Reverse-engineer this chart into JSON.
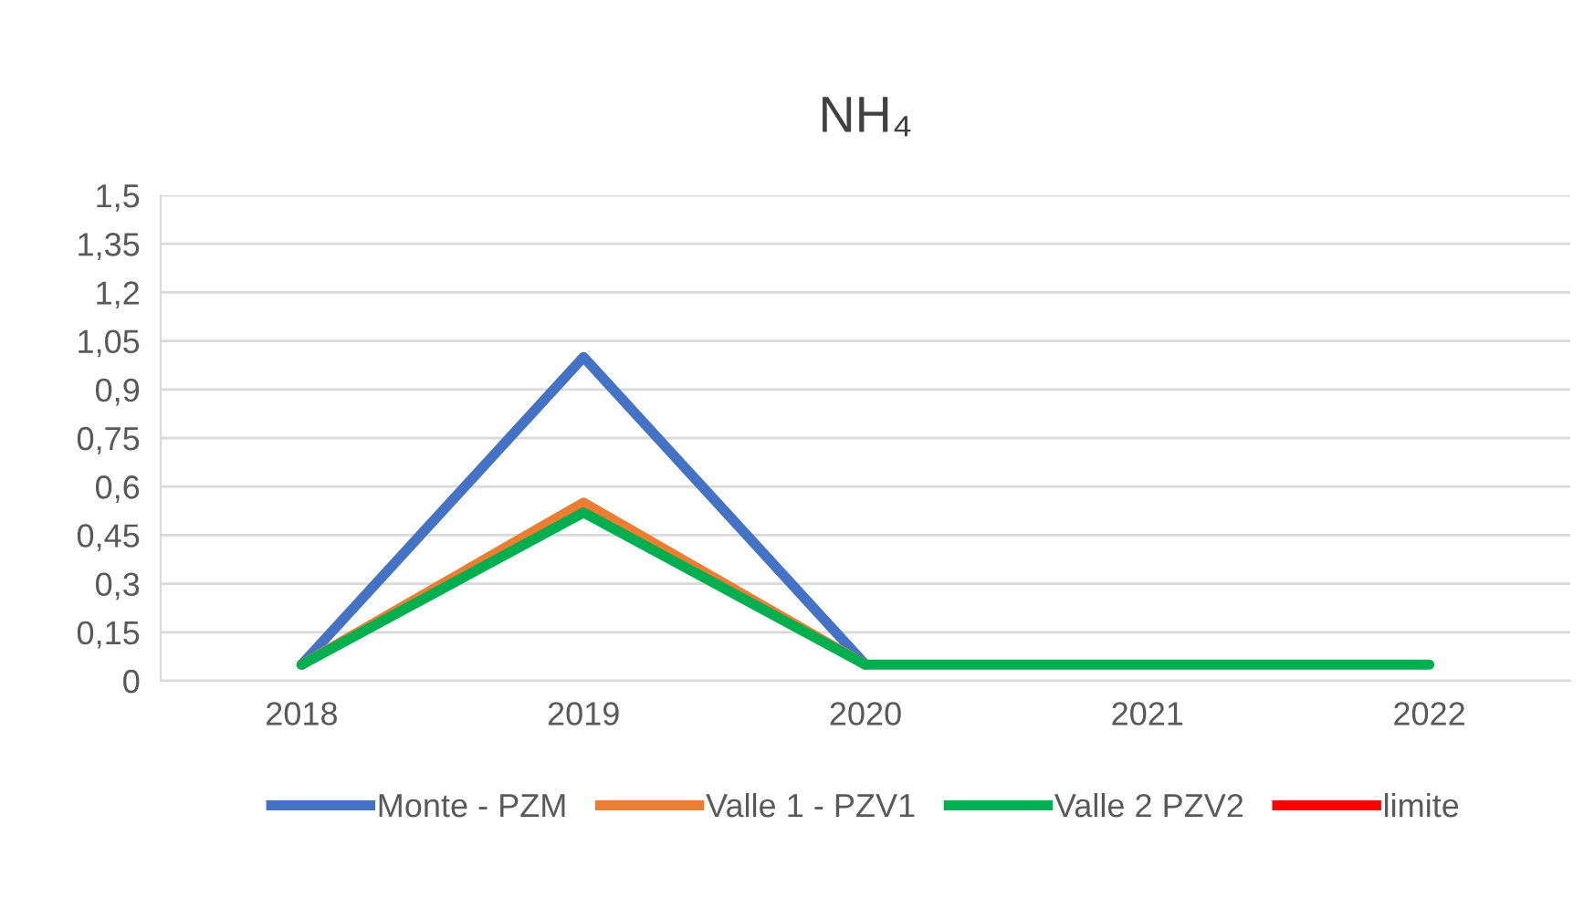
{
  "chart_data": {
    "type": "line",
    "title": "NH₄",
    "categories": [
      "2018",
      "2019",
      "2020",
      "2021",
      "2022"
    ],
    "series": [
      {
        "name": "Monte - PZM",
        "color": "#4472c4",
        "values": [
          0.05,
          1.0,
          0.05,
          null,
          null
        ]
      },
      {
        "name": "Valle 1 - PZV1",
        "color": "#ed7d31",
        "values": [
          0.05,
          0.55,
          0.05,
          null,
          null
        ]
      },
      {
        "name": "Valle 2 PZV2",
        "color": "#00b050",
        "values": [
          0.05,
          0.52,
          0.05,
          0.05,
          0.05
        ]
      },
      {
        "name": "limite",
        "color": "#ff0000",
        "values": [
          null,
          null,
          null,
          null,
          null
        ]
      }
    ],
    "ylim": [
      0,
      1.5
    ],
    "yticks": [
      0,
      {
        "value": 0.15,
        "label": "0,15"
      },
      {
        "value": 0.3,
        "label": "0,3"
      },
      {
        "value": 0.45,
        "label": "0,45"
      },
      {
        "value": 0.6,
        "label": "0,6"
      },
      {
        "value": 0.75,
        "label": "0,75"
      },
      {
        "value": 0.9,
        "label": "0,9"
      },
      {
        "value": 1.05,
        "label": "1,05"
      },
      {
        "value": 1.2,
        "label": "1,2"
      },
      {
        "value": 1.35,
        "label": "1,35"
      },
      {
        "value": 1.5,
        "label": "1,5"
      }
    ],
    "grid": "y",
    "legend": "bottom",
    "marker": "none",
    "line_style": "solid"
  }
}
